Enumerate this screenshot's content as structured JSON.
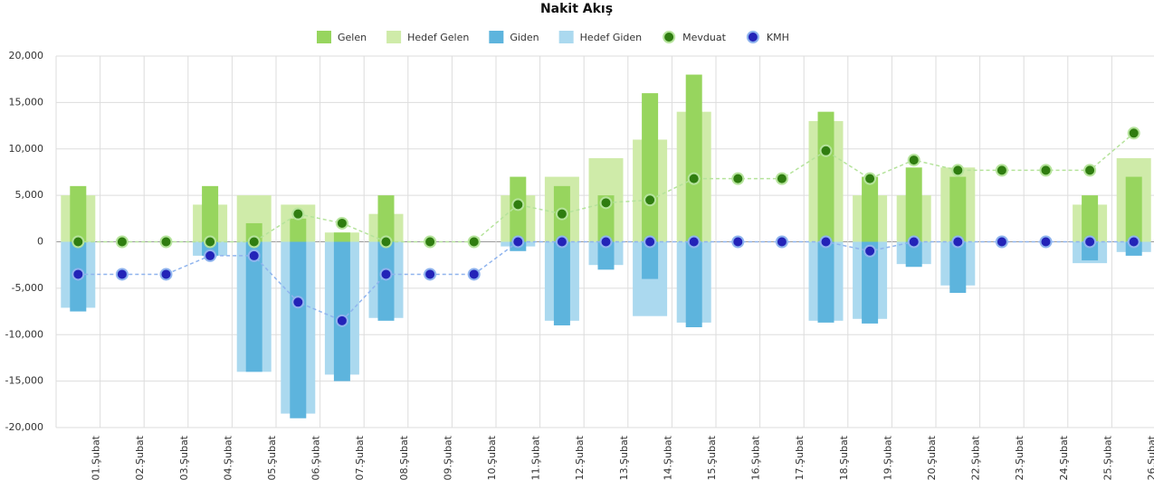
{
  "chart_data": {
    "type": "combo",
    "title": "Nakit Akış",
    "categories": [
      "01.Şubat",
      "02.Şubat",
      "03.Şubat",
      "04.Şubat",
      "05.Şubat",
      "06.Şubat",
      "07.Şubat",
      "08.Şubat",
      "09.Şubat",
      "10.Şubat",
      "11.Şubat",
      "12.Şubat",
      "13.Şubat",
      "14.Şubat",
      "15.Şubat",
      "16.Şubat",
      "17.Şubat",
      "18.Şubat",
      "19.Şubat",
      "20.Şubat",
      "22.Şubat",
      "23.Şubat",
      "24.Şubat",
      "25.Şubat",
      "26.Şubat"
    ],
    "series": [
      {
        "name": "Gelen",
        "kind": "bar",
        "width": "narrow",
        "color": "#97d55e",
        "values": [
          6000,
          0,
          0,
          6000,
          2000,
          2500,
          1000,
          5000,
          0,
          0,
          7000,
          6000,
          5000,
          16000,
          18000,
          0,
          0,
          14000,
          7000,
          8000,
          7000,
          0,
          0,
          5000,
          7000
        ]
      },
      {
        "name": "Hedef Gelen",
        "kind": "bar",
        "width": "wide",
        "color": "#cfeba9",
        "values": [
          5000,
          0,
          0,
          4000,
          5000,
          4000,
          1000,
          3000,
          0,
          0,
          5000,
          7000,
          9000,
          11000,
          14000,
          0,
          0,
          13000,
          5000,
          5000,
          8000,
          0,
          0,
          4000,
          9000
        ]
      },
      {
        "name": "Giden",
        "kind": "bar",
        "width": "narrow",
        "color": "#5db4dd",
        "values": [
          -7500,
          0,
          0,
          -1500,
          -14000,
          -19000,
          -15000,
          -8500,
          0,
          0,
          -1000,
          -9000,
          -3000,
          -4000,
          -9200,
          0,
          0,
          -8700,
          -8800,
          -2700,
          -5500,
          0,
          0,
          -2000,
          -1500
        ]
      },
      {
        "name": "Hedef Giden",
        "kind": "bar",
        "width": "wide",
        "color": "#abd9ef",
        "values": [
          -7100,
          0,
          0,
          -1500,
          -14000,
          -18500,
          -14300,
          -8200,
          0,
          0,
          -500,
          -8500,
          -2500,
          -8000,
          -8700,
          0,
          0,
          -8500,
          -8300,
          -2400,
          -4700,
          0,
          0,
          -2300,
          -1100
        ]
      },
      {
        "name": "Mevduat",
        "kind": "line",
        "color": "#2f7d10",
        "line_color": "#b5e39b",
        "values": [
          0,
          0,
          0,
          0,
          0,
          3000,
          2000,
          0,
          0,
          0,
          4000,
          3000,
          4200,
          4500,
          6800,
          6800,
          6800,
          9800,
          6800,
          8800,
          7700,
          7700,
          7700,
          7700,
          11700
        ]
      },
      {
        "name": "KMH",
        "kind": "line",
        "color": "#2323b8",
        "line_color": "#8fb4ee",
        "values": [
          -3500,
          -3500,
          -3500,
          -1500,
          -1500,
          -6500,
          -8500,
          -3500,
          -3500,
          -3500,
          0,
          0,
          0,
          0,
          0,
          0,
          0,
          0,
          -1000,
          0,
          0,
          0,
          0,
          0,
          0
        ]
      }
    ],
    "ylim": [
      -20000,
      20000
    ],
    "yticks": [
      {
        "value": -20000,
        "label": "-20,000"
      },
      {
        "value": -15000,
        "label": "-15,000"
      },
      {
        "value": -10000,
        "label": "-10,000"
      },
      {
        "value": -5000,
        "label": "-5,000"
      },
      0,
      {
        "value": 5000,
        "label": "5,000"
      },
      {
        "value": 10000,
        "label": "10,000"
      },
      {
        "value": 15000,
        "label": "15,000"
      },
      {
        "value": 20000,
        "label": "20,000"
      }
    ],
    "grid": true,
    "legend": "top"
  }
}
